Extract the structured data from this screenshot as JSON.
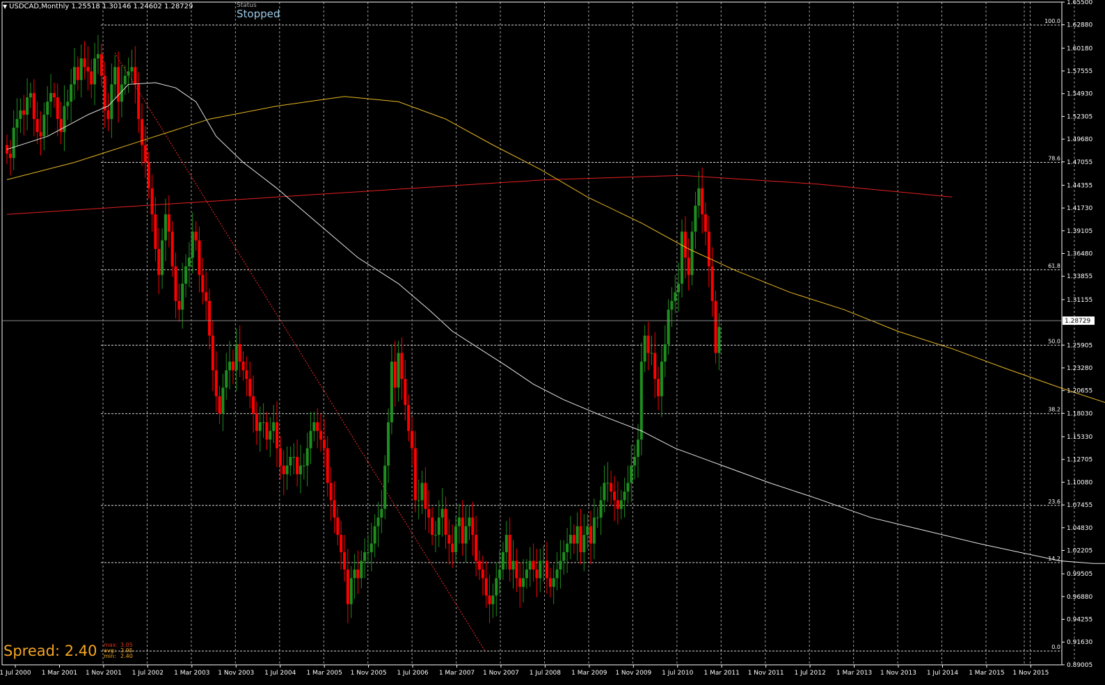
{
  "header": {
    "symbol_line": "USDCAD,Monthly  1.25518 1.30146 1.24602 1.28729"
  },
  "status": {
    "label": "Status",
    "value": "Stopped"
  },
  "spread": {
    "label": "Spread: 2.40",
    "stats": [
      {
        "key": "max:",
        "value": "3.05"
      },
      {
        "key": "avg:",
        "value": "2.95"
      },
      {
        "key": "min:",
        "value": "2.40"
      }
    ]
  },
  "colors": {
    "background": "#000000",
    "grid": "#c0c0c0",
    "bull": "#1e8f1e",
    "bear": "#ff0000",
    "ma_fast": "#e8e8e8",
    "ma_mid": "#e8b923",
    "ma_slow": "#e62020",
    "trendline": "#ff2a2a",
    "fib": "#d8d8d8"
  },
  "chart_data": {
    "type": "candlestick",
    "symbol": "USDCAD",
    "timeframe": "Monthly",
    "ylim": [
      0.89,
      1.655
    ],
    "y_ticks": [
      "1.65500",
      "1.62880",
      "1.60180",
      "1.57555",
      "1.54930",
      "1.52305",
      "1.49680",
      "1.47055",
      "1.44355",
      "1.41730",
      "1.39105",
      "1.36480",
      "1.33855",
      "1.31155",
      "1.28729",
      "1.25905",
      "1.23280",
      "1.20655",
      "1.18030",
      "1.15330",
      "1.12705",
      "1.10080",
      "1.07455",
      "1.04830",
      "1.02205",
      "0.99505",
      "0.96880",
      "0.94255",
      "0.91630",
      "0.89005"
    ],
    "current_price": "1.28729",
    "x_ticks": [
      "1 Jul 2000",
      "1 Mar 2001",
      "1 Nov 2001",
      "1 Jul 2002",
      "1 Mar 2003",
      "1 Nov 2003",
      "1 Jul 2004",
      "1 Mar 2005",
      "1 Nov 2005",
      "1 Jul 2006",
      "1 Mar 2007",
      "1 Nov 2007",
      "1 Jul 2008",
      "1 Mar 2009",
      "1 Nov 2009",
      "1 Jul 2010",
      "1 Mar 2011",
      "1 Nov 2011",
      "1 Jul 2012",
      "1 Mar 2013",
      "1 Nov 2013",
      "1 Jul 2014",
      "1 Mar 2015",
      "1 Nov 2015"
    ],
    "fib_levels": [
      {
        "label": "100.0",
        "price": 1.6285
      },
      {
        "label": "78.6",
        "price": 1.47
      },
      {
        "label": "61.8",
        "price": 1.346
      },
      {
        "label": "50.0",
        "price": 1.259
      },
      {
        "label": "38.2",
        "price": 1.18
      },
      {
        "label": "23.6",
        "price": 1.074
      },
      {
        "label": "14.2",
        "price": 1.008
      },
      {
        "label": "0.0",
        "price": 0.906
      }
    ],
    "closes": [
      1.48,
      1.475,
      1.51,
      1.52,
      1.53,
      1.525,
      1.545,
      1.55,
      1.52,
      1.505,
      1.5,
      1.525,
      1.54,
      1.55,
      1.545,
      1.52,
      1.505,
      1.535,
      1.54,
      1.56,
      1.58,
      1.565,
      1.59,
      1.58,
      1.575,
      1.56,
      1.59,
      1.595,
      1.57,
      1.53,
      1.52,
      1.56,
      1.58,
      1.54,
      1.56,
      1.57,
      1.575,
      1.58,
      1.56,
      1.52,
      1.49,
      1.47,
      1.44,
      1.41,
      1.37,
      1.34,
      1.38,
      1.41,
      1.39,
      1.35,
      1.31,
      1.3,
      1.33,
      1.35,
      1.36,
      1.39,
      1.38,
      1.34,
      1.32,
      1.31,
      1.27,
      1.23,
      1.2,
      1.18,
      1.21,
      1.23,
      1.24,
      1.23,
      1.26,
      1.24,
      1.23,
      1.22,
      1.2,
      1.18,
      1.16,
      1.17,
      1.17,
      1.15,
      1.16,
      1.17,
      1.14,
      1.12,
      1.11,
      1.12,
      1.13,
      1.13,
      1.11,
      1.12,
      1.12,
      1.14,
      1.16,
      1.17,
      1.16,
      1.15,
      1.14,
      1.1,
      1.08,
      1.06,
      1.04,
      1.02,
      1.0,
      0.96,
      0.99,
      1.0,
      0.99,
      1.01,
      1.02,
      1.02,
      1.03,
      1.05,
      1.06,
      1.07,
      1.12,
      1.17,
      1.24,
      1.21,
      1.25,
      1.22,
      1.19,
      1.16,
      1.14,
      1.08,
      1.08,
      1.1,
      1.07,
      1.06,
      1.04,
      1.04,
      1.06,
      1.07,
      1.04,
      1.03,
      1.02,
      1.05,
      1.06,
      1.03,
      1.05,
      1.06,
      1.04,
      1.01,
      1.0,
      0.99,
      0.97,
      0.96,
      0.97,
      0.99,
      1.0,
      1.02,
      1.04,
      1.0,
      1.01,
      0.99,
      0.98,
      0.99,
      1.0,
      1.01,
      1.0,
      0.99,
      1.01,
      1.01,
      0.99,
      0.98,
      0.99,
      1.0,
      1.01,
      1.02,
      1.03,
      1.04,
      1.03,
      1.05,
      1.02,
      1.04,
      1.05,
      1.03,
      1.06,
      1.06,
      1.08,
      1.1,
      1.1,
      1.09,
      1.08,
      1.07,
      1.08,
      1.09,
      1.1,
      1.12,
      1.13,
      1.15,
      1.24,
      1.27,
      1.25,
      1.25,
      1.22,
      1.2,
      1.24,
      1.26,
      1.3,
      1.31,
      1.32,
      1.33,
      1.39,
      1.36,
      1.34,
      1.39,
      1.42,
      1.44,
      1.41,
      1.39,
      1.35,
      1.31,
      1.25,
      1.28
    ],
    "ma_fast": [
      [
        0,
        1.485
      ],
      [
        12,
        1.5
      ],
      [
        24,
        1.525
      ],
      [
        30,
        1.535
      ],
      [
        36,
        1.56
      ],
      [
        44,
        1.562
      ],
      [
        50,
        1.556
      ],
      [
        56,
        1.54
      ],
      [
        62,
        1.5
      ],
      [
        70,
        1.47
      ],
      [
        80,
        1.44
      ],
      [
        92,
        1.4
      ],
      [
        104,
        1.36
      ],
      [
        116,
        1.33
      ],
      [
        125,
        1.3
      ],
      [
        132,
        1.275
      ],
      [
        140,
        1.255
      ],
      [
        148,
        1.235
      ],
      [
        156,
        1.214
      ],
      [
        165,
        1.196
      ],
      [
        176,
        1.178
      ],
      [
        188,
        1.16
      ],
      [
        198,
        1.14
      ],
      [
        212,
        1.12
      ],
      [
        226,
        1.1
      ],
      [
        240,
        1.082
      ],
      [
        256,
        1.06
      ],
      [
        272,
        1.045
      ],
      [
        288,
        1.03
      ],
      [
        300,
        1.02
      ],
      [
        312,
        1.01
      ],
      [
        322,
        1.007
      ],
      [
        330,
        1.007
      ]
    ],
    "ma_mid": [
      [
        0,
        1.45
      ],
      [
        20,
        1.47
      ],
      [
        40,
        1.495
      ],
      [
        60,
        1.52
      ],
      [
        80,
        1.535
      ],
      [
        100,
        1.546
      ],
      [
        116,
        1.54
      ],
      [
        130,
        1.52
      ],
      [
        144,
        1.49
      ],
      [
        158,
        1.462
      ],
      [
        172,
        1.43
      ],
      [
        188,
        1.4
      ],
      [
        202,
        1.37
      ],
      [
        216,
        1.345
      ],
      [
        232,
        1.32
      ],
      [
        248,
        1.3
      ],
      [
        264,
        1.275
      ],
      [
        280,
        1.255
      ],
      [
        296,
        1.232
      ],
      [
        312,
        1.21
      ],
      [
        326,
        1.192
      ],
      [
        338,
        1.175
      ],
      [
        352,
        1.16
      ],
      [
        366,
        1.146
      ],
      [
        380,
        1.132
      ]
    ],
    "ma_slow": [
      [
        0,
        1.41
      ],
      [
        40,
        1.42
      ],
      [
        80,
        1.43
      ],
      [
        120,
        1.44
      ],
      [
        160,
        1.45
      ],
      [
        200,
        1.455
      ],
      [
        240,
        1.445
      ],
      [
        280,
        1.43
      ]
    ]
  }
}
